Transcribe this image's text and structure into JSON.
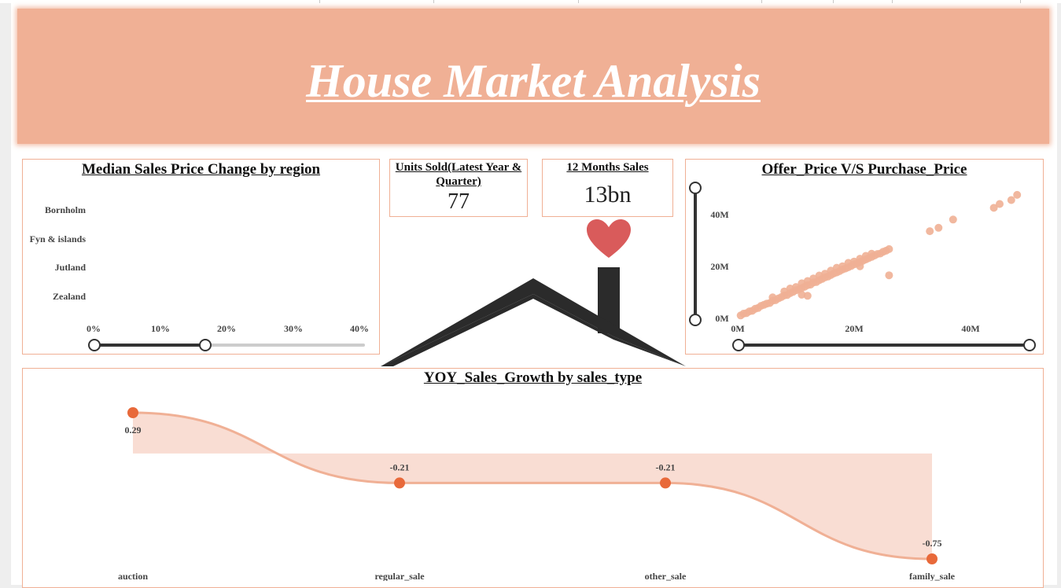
{
  "banner": {
    "title": "House Market Analysis"
  },
  "regional": {
    "title": "Median Sales Price Change by region",
    "regions": [
      "Bornholm",
      "Fyn & islands",
      "Jutland",
      "Zealand"
    ],
    "x_ticks": [
      "0%",
      "10%",
      "20%",
      "30%",
      "40%"
    ],
    "slider_range_percent": [
      0,
      16.7
    ]
  },
  "units_card": {
    "title": "Units Sold(Latest Year & Quarter)",
    "value": "77"
  },
  "sales_card": {
    "title": "12 Months Sales",
    "value": "13bn"
  },
  "scatter": {
    "title": "Offer_Price V/S Purchase_Price",
    "y_ticks": [
      "40M",
      "20M",
      "0M"
    ],
    "x_ticks": [
      "0M",
      "20M",
      "40M"
    ]
  },
  "yoy": {
    "title": "YOY_Sales_Growth by sales_type"
  },
  "colors": {
    "accent": "#f0b095",
    "marker": "#e8693a",
    "area": "#f9ddd3",
    "heart": "#d95b5b",
    "house": "#2b2b2b"
  },
  "icons": [
    "heart-icon",
    "house-roof-icon"
  ],
  "chart_data": [
    {
      "type": "scatter",
      "title": "Offer_Price V/S Purchase_Price",
      "xlabel": "",
      "ylabel": "",
      "xlim": [
        0,
        50
      ],
      "ylim": [
        0,
        50
      ],
      "x_unit": "M",
      "y_unit": "M",
      "points": [
        [
          0.5,
          0.5
        ],
        [
          1,
          1.2
        ],
        [
          1.5,
          1.4
        ],
        [
          2,
          2.1
        ],
        [
          2.5,
          2.3
        ],
        [
          3,
          3.1
        ],
        [
          3.5,
          3.4
        ],
        [
          4,
          4.2
        ],
        [
          4.5,
          4.6
        ],
        [
          5,
          5.1
        ],
        [
          5.5,
          5.3
        ],
        [
          6,
          6.2
        ],
        [
          6.5,
          6.4
        ],
        [
          7,
          7.1
        ],
        [
          7.5,
          7.6
        ],
        [
          8,
          8.2
        ],
        [
          8.5,
          8.4
        ],
        [
          9,
          9.1
        ],
        [
          9.5,
          9.6
        ],
        [
          10,
          10.2
        ],
        [
          10.5,
          10.6
        ],
        [
          11,
          11.1
        ],
        [
          11.5,
          11.6
        ],
        [
          12,
          12.2
        ],
        [
          12.5,
          12.4
        ],
        [
          13,
          13.2
        ],
        [
          13.5,
          13.4
        ],
        [
          14,
          14.1
        ],
        [
          14.5,
          14.6
        ],
        [
          15,
          15.2
        ],
        [
          15.5,
          15.5
        ],
        [
          16,
          16.1
        ],
        [
          16.5,
          16.7
        ],
        [
          17,
          17.1
        ],
        [
          17.5,
          17.6
        ],
        [
          18,
          18.2
        ],
        [
          18.5,
          18.6
        ],
        [
          19,
          19.1
        ],
        [
          19.5,
          19.6
        ],
        [
          20,
          20.2
        ],
        [
          20.5,
          20.6
        ],
        [
          21,
          21.1
        ],
        [
          21.5,
          21.6
        ],
        [
          22,
          22.1
        ],
        [
          22.5,
          22.6
        ],
        [
          23,
          23.1
        ],
        [
          23.5,
          23.6
        ],
        [
          24,
          24.2
        ],
        [
          24.5,
          24.4
        ],
        [
          25,
          25.1
        ],
        [
          25.5,
          25.5
        ],
        [
          26,
          26.1
        ],
        [
          8,
          9.8
        ],
        [
          10,
          11.5
        ],
        [
          12,
          13.8
        ],
        [
          14,
          15.9
        ],
        [
          16,
          17.8
        ],
        [
          18,
          19.5
        ],
        [
          20,
          21.3
        ],
        [
          22,
          23.5
        ],
        [
          6,
          7.5
        ],
        [
          9,
          10.9
        ],
        [
          11,
          12.9
        ],
        [
          13,
          14.8
        ],
        [
          15,
          16.6
        ],
        [
          17,
          18.9
        ],
        [
          19,
          20.8
        ],
        [
          21,
          22.4
        ],
        [
          23,
          24.3
        ],
        [
          11,
          8.5
        ],
        [
          12,
          8.1
        ],
        [
          21,
          19.5
        ],
        [
          26,
          16
        ],
        [
          44,
          42
        ],
        [
          47,
          45
        ],
        [
          33,
          33
        ],
        [
          48,
          47
        ],
        [
          37,
          37.5
        ],
        [
          45,
          43.5
        ],
        [
          34.5,
          34.3
        ]
      ]
    },
    {
      "type": "area",
      "title": "YOY_Sales_Growth by sales_type",
      "categories": [
        "auction",
        "regular_sale",
        "other_sale",
        "family_sale"
      ],
      "values": [
        0.29,
        -0.21,
        -0.21,
        -0.75
      ],
      "data_labels": [
        "0.29",
        "-0.21",
        "-0.21",
        "-0.75"
      ],
      "ylim": [
        -0.8,
        0.35
      ]
    }
  ]
}
